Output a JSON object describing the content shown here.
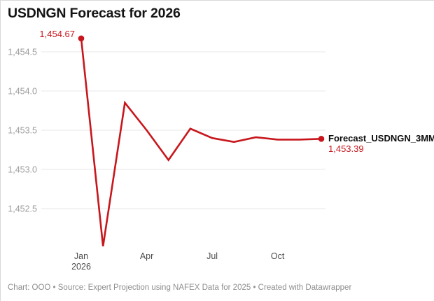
{
  "header": {
    "title": "USDNGN Forecast for 2026"
  },
  "chart_data": {
    "type": "line",
    "title": "USDNGN Forecast for 2026",
    "x": [
      "Jan 2026",
      "Feb 2026",
      "Mar 2026",
      "Apr 2026",
      "May 2026",
      "Jun 2026",
      "Jul 2026",
      "Aug 2026",
      "Sep 2026",
      "Oct 2026",
      "Nov 2026",
      "Dec 2026"
    ],
    "series": [
      {
        "name": "Forecast_USDNGN_3MMA",
        "values": [
          1454.67,
          1452.02,
          1453.85,
          1453.5,
          1453.12,
          1453.52,
          1453.4,
          1453.35,
          1453.41,
          1453.38,
          1453.38,
          1453.39
        ]
      }
    ],
    "ylim": [
      1451.95,
      1454.75
    ],
    "yticks": [
      {
        "value": 1454.5,
        "label": "1,454.5"
      },
      {
        "value": 1454.0,
        "label": "1,454.0"
      },
      {
        "value": 1453.5,
        "label": "1,453.5"
      },
      {
        "value": 1453.0,
        "label": "1,453.0"
      },
      {
        "value": 1452.5,
        "label": "1,452.5"
      }
    ],
    "xticks": [
      {
        "index": 0,
        "line1": "Jan",
        "line2": "2026"
      },
      {
        "index": 3,
        "line1": "Apr"
      },
      {
        "index": 6,
        "line1": "Jul"
      },
      {
        "index": 9,
        "line1": "Oct"
      }
    ],
    "grid": true,
    "legend_position": "end-of-line",
    "point_labels": {
      "first": "1,454.67",
      "last": "1,453.39"
    }
  },
  "annotations": {
    "first_point_label": "1,454.67",
    "series_label": "Forecast_USDNGN_3MMA",
    "last_value_label": "1,453.39"
  },
  "footer": {
    "text": "Chart: OOO • Source: Expert Projection using NAFEX Data for 2025 • Created with Datawrapper"
  },
  "colors": {
    "line": "#c7171d",
    "value_label": "#c7171d",
    "grid": "#e7e7e7",
    "ytick_text": "#9d9d9d",
    "xtick_text": "#4c4c4c",
    "title_text": "#141414",
    "footer_text": "#8e8e8e",
    "series_label_text": "#0b0b0b"
  }
}
